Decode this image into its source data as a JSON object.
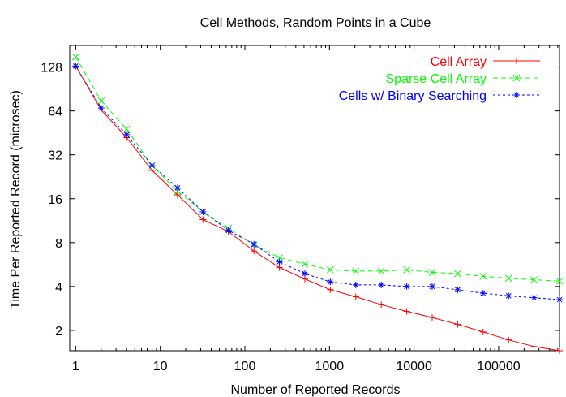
{
  "chart_data": {
    "type": "line",
    "title": "Cell Methods, Random Points in a Cube",
    "xlabel": "Number of Reported Records",
    "ylabel": "Time Per Reported Record (microsec)",
    "xscale": "log",
    "yscale": "log",
    "xlim": [
      0.85,
      524288
    ],
    "ylim": [
      1.45,
      180
    ],
    "xticks": [
      {
        "value": 1,
        "label": "1"
      },
      {
        "value": 10,
        "label": "10"
      },
      {
        "value": 100,
        "label": "100"
      },
      {
        "value": 1000,
        "label": "1000"
      },
      {
        "value": 10000,
        "label": "10000"
      },
      {
        "value": 100000,
        "label": "100000"
      }
    ],
    "yticks": [
      {
        "value": 2,
        "label": "2"
      },
      {
        "value": 4,
        "label": "4"
      },
      {
        "value": 8,
        "label": "8"
      },
      {
        "value": 16,
        "label": "16"
      },
      {
        "value": 32,
        "label": "32"
      },
      {
        "value": 64,
        "label": "64"
      },
      {
        "value": 128,
        "label": "128"
      }
    ],
    "legend_position": "top-right",
    "x": [
      1,
      2,
      4,
      8,
      16,
      32,
      64,
      128,
      256,
      512,
      1024,
      2048,
      4096,
      8192,
      16384,
      32768,
      65536,
      131072,
      262144,
      524288
    ],
    "series": [
      {
        "name": "Cell Array",
        "color": "#ff0000",
        "marker": "plus",
        "dash": "solid",
        "values": [
          130,
          65,
          42,
          25,
          17,
          11.5,
          9.5,
          7,
          5.4,
          4.5,
          3.8,
          3.4,
          3.0,
          2.7,
          2.45,
          2.2,
          1.95,
          1.72,
          1.55,
          1.45
        ]
      },
      {
        "name": "Sparse Cell Array",
        "color": "#00ff00",
        "marker": "cross",
        "dash": "dashed",
        "values": [
          150,
          75,
          48,
          27,
          18,
          13,
          10,
          7.7,
          6.3,
          5.7,
          5.2,
          5.1,
          5.1,
          5.2,
          5.0,
          4.9,
          4.7,
          4.55,
          4.45,
          4.35
        ]
      },
      {
        "name": "Cells w/ Binary Searching",
        "color": "#0000ff",
        "marker": "star",
        "dash": "dotted",
        "values": [
          130,
          67,
          44,
          27,
          19,
          13,
          9.7,
          7.8,
          5.9,
          4.9,
          4.3,
          4.1,
          4.1,
          4.0,
          4.0,
          3.8,
          3.6,
          3.45,
          3.35,
          3.25
        ]
      }
    ]
  }
}
